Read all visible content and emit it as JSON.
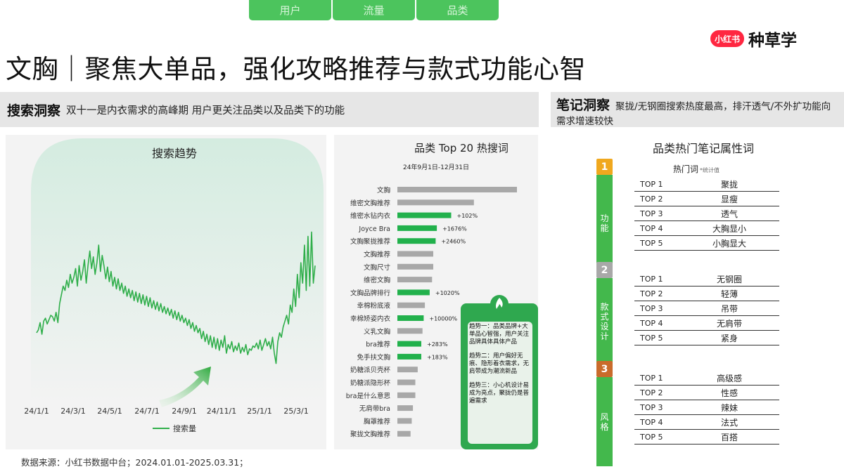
{
  "tabs": [
    "用户",
    "流量",
    "品类"
  ],
  "brand": {
    "logo": "小红书",
    "text": "种草学"
  },
  "title": "文胸｜聚焦大单品，强化攻略推荐与款式功能心智",
  "search_insight": {
    "label": "搜索洞察",
    "text": "双十一是内衣需求的高峰期  用户更关注品类以及品类下的功能"
  },
  "note_insight": {
    "label": "笔记洞察",
    "text": "聚拢/无钢圈搜索热度最高，排汗透气/不外扩功能向需求增速较快"
  },
  "footer": "数据来源：小红书数据中台；2024.01.01-2025.03.31；",
  "chart_data": [
    {
      "type": "line",
      "title": "搜索趋势",
      "series": [
        {
          "name": "搜索量",
          "values": [
            26,
            28,
            33,
            25,
            34,
            36,
            32,
            35,
            38,
            37,
            34,
            40,
            33,
            46,
            52,
            58,
            55,
            62,
            57,
            66,
            60,
            64,
            70,
            58,
            72,
            62,
            68,
            76,
            60,
            72,
            82,
            70,
            78,
            66,
            74,
            86,
            68,
            79,
            72,
            63,
            71,
            61,
            68,
            58,
            64,
            56,
            63,
            55,
            60,
            53,
            58,
            51,
            56,
            50,
            55,
            48,
            54,
            47,
            53,
            46,
            52,
            45,
            51,
            44,
            50,
            43,
            48,
            42,
            47,
            41,
            46,
            40,
            44,
            39,
            43,
            38,
            42,
            36,
            41,
            35,
            40,
            34,
            38,
            33,
            36,
            31,
            35,
            29,
            33,
            27,
            31,
            26,
            29,
            22,
            27,
            20,
            25,
            18,
            24,
            16,
            23,
            15,
            22,
            14,
            21,
            16,
            24,
            12,
            18,
            15,
            20,
            13,
            17,
            14,
            19,
            12,
            16,
            13,
            18,
            11,
            15,
            14,
            17,
            16,
            19,
            15,
            21,
            14,
            18,
            22,
            17,
            20,
            15,
            23,
            12,
            5,
            20,
            26,
            23,
            30,
            34,
            38,
            32,
            45,
            40,
            56,
            44,
            66,
            50,
            74,
            60,
            86,
            55,
            92,
            58,
            95,
            60,
            72
          ]
        }
      ],
      "x_ticks": [
        "24/1/1",
        "24/3/1",
        "24/5/1",
        "24/7/1",
        "24/9/1",
        "24/11/1",
        "25/1/1",
        "25/3/1"
      ],
      "legend": "bottom"
    },
    {
      "type": "bar",
      "title": "品类 Top 20 热搜词",
      "subtitle": "24年9月1日-12月31日",
      "categories": [
        "文胸",
        "维密文胸推荐",
        "维密水钻内衣",
        "Joyce Bra",
        "文胸聚拢推荐",
        "文胸推荐",
        "文胸尺寸",
        "维密文胸",
        "文胸品牌排行",
        "幸棉粉底液",
        "幸棉矫姿内衣",
        "义乳文胸",
        "bra推荐",
        "免手扶文胸",
        "奶糖派贝壳杯",
        "奶糖派隐形杯",
        "bra是什么意思",
        "无肩带bra",
        "胸罩推荐",
        "聚拢文胸推荐"
      ],
      "values": [
        100,
        64,
        45,
        33,
        32,
        30,
        30,
        29,
        27,
        23,
        22,
        21,
        20,
        20,
        17,
        15,
        15,
        13,
        12,
        11
      ],
      "highlight": [
        false,
        false,
        true,
        true,
        true,
        false,
        false,
        false,
        true,
        false,
        true,
        false,
        true,
        true,
        false,
        false,
        false,
        false,
        false,
        false
      ],
      "labels": [
        "",
        "",
        "+102%",
        "+1676%",
        "+2460%",
        "",
        "",
        "",
        "+1020%",
        "",
        "+10000%",
        "",
        "+283%",
        "+183%",
        "",
        "",
        "",
        "",
        "",
        ""
      ]
    }
  ],
  "trend_callout": {
    "p1": "趋势一：品类品牌+大单品心智强，用户关注品牌具体具体产品",
    "p2": "趋势二：用户偏好无痕、隐形着衣需求，无肩带成为潮流新品",
    "p3": "趋势三：小心机设计易成为亮点，聚拢仍是普遍需求"
  },
  "attributes": {
    "title": "品类热门笔记属性词",
    "header": "热门词",
    "header_note": "*统计值",
    "groups": [
      {
        "num": "1",
        "color": "#f0a81e",
        "category": "功能",
        "items": [
          {
            "rank": "TOP 1",
            "word": "聚拢"
          },
          {
            "rank": "TOP 2",
            "word": "显瘦"
          },
          {
            "rank": "TOP 3",
            "word": "透气"
          },
          {
            "rank": "TOP 4",
            "word": "大胸显小"
          },
          {
            "rank": "TOP 5",
            "word": "小胸显大"
          }
        ]
      },
      {
        "num": "2",
        "color": "#a8a8a8",
        "category": "款式设计",
        "items": [
          {
            "rank": "TOP 1",
            "word": "无钢圈"
          },
          {
            "rank": "TOP 2",
            "word": "轻薄"
          },
          {
            "rank": "TOP 3",
            "word": "吊带"
          },
          {
            "rank": "TOP 4",
            "word": "无肩带"
          },
          {
            "rank": "TOP 5",
            "word": "紧身"
          }
        ]
      },
      {
        "num": "3",
        "color": "#c96b2b",
        "category": "风格",
        "items": [
          {
            "rank": "TOP 1",
            "word": "高级感"
          },
          {
            "rank": "TOP 2",
            "word": "性感"
          },
          {
            "rank": "TOP 3",
            "word": "辣妹"
          },
          {
            "rank": "TOP 4",
            "word": "法式"
          },
          {
            "rank": "TOP 5",
            "word": "百搭"
          }
        ]
      }
    ]
  },
  "colors": {
    "green": "#22b14c",
    "line": "#2fae4a",
    "bar_gray": "#a8a8a8",
    "callout": "#2fa84f"
  }
}
